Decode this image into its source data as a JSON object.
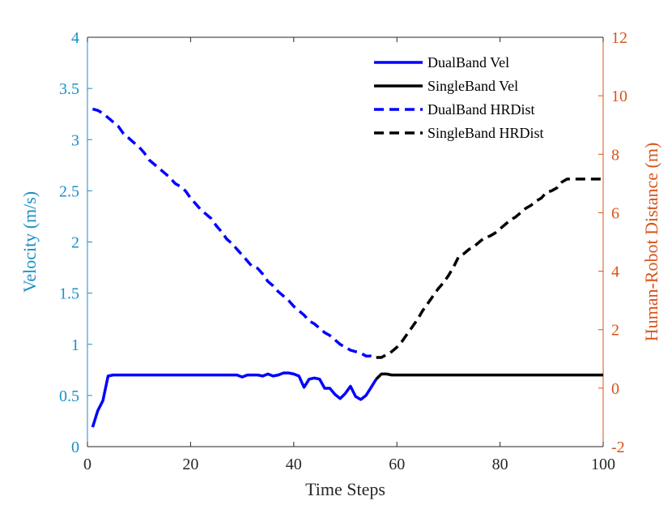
{
  "chart_data": {
    "type": "line",
    "xlabel": "Time Steps",
    "ylabel_left": "Velocity (m/s)",
    "ylabel_right": "Human-Robot Distance (m)",
    "xlim": [
      0,
      100
    ],
    "ylim_left": [
      0,
      4
    ],
    "ylim_right": [
      -2,
      12
    ],
    "xticks": [
      0,
      20,
      40,
      60,
      80,
      100
    ],
    "yticks_left": [
      0,
      0.5,
      1,
      1.5,
      2,
      2.5,
      3,
      3.5,
      4
    ],
    "yticks_left_labels": [
      "0",
      "0.5",
      "1",
      "1.5",
      "2",
      "2.5",
      "3",
      "3.5",
      "4"
    ],
    "yticks_right": [
      -2,
      0,
      2,
      4,
      6,
      8,
      10,
      12
    ],
    "grid": false,
    "legend_position": "top-right",
    "colors": {
      "left_axis": "#1a8fc7",
      "right_axis": "#d95319",
      "axis": "#262626"
    },
    "series": [
      {
        "name": "DualBand Vel",
        "axis": "left",
        "color": "#0000ff",
        "dash": "solid",
        "points": [
          [
            1,
            0.19
          ],
          [
            2,
            0.35
          ],
          [
            3,
            0.45
          ],
          [
            4,
            0.69
          ],
          [
            5,
            0.7
          ],
          [
            10,
            0.7
          ],
          [
            15,
            0.7
          ],
          [
            20,
            0.7
          ],
          [
            25,
            0.7
          ],
          [
            29,
            0.7
          ],
          [
            30,
            0.68
          ],
          [
            31,
            0.7
          ],
          [
            33,
            0.7
          ],
          [
            34,
            0.69
          ],
          [
            35,
            0.71
          ],
          [
            36,
            0.69
          ],
          [
            37,
            0.7
          ],
          [
            38,
            0.72
          ],
          [
            39,
            0.72
          ],
          [
            40,
            0.71
          ],
          [
            41,
            0.69
          ],
          [
            42,
            0.58
          ],
          [
            43,
            0.66
          ],
          [
            44,
            0.67
          ],
          [
            45,
            0.66
          ],
          [
            46,
            0.57
          ],
          [
            47,
            0.57
          ],
          [
            48,
            0.51
          ],
          [
            49,
            0.47
          ],
          [
            50,
            0.52
          ],
          [
            51,
            0.59
          ],
          [
            52,
            0.49
          ],
          [
            53,
            0.46
          ],
          [
            54,
            0.5
          ],
          [
            55,
            0.58
          ],
          [
            56,
            0.66
          ]
        ]
      },
      {
        "name": "SingleBand Vel",
        "axis": "left",
        "color": "#000000",
        "dash": "solid",
        "points": [
          [
            56,
            0.66
          ],
          [
            57,
            0.71
          ],
          [
            58,
            0.71
          ],
          [
            59,
            0.7
          ],
          [
            60,
            0.7
          ],
          [
            70,
            0.7
          ],
          [
            80,
            0.7
          ],
          [
            90,
            0.7
          ],
          [
            100,
            0.7
          ]
        ]
      },
      {
        "name": "DualBand HRDist",
        "axis": "right",
        "color": "#0000ff",
        "dash": "dashed",
        "points": [
          [
            1,
            9.55
          ],
          [
            2,
            9.5
          ],
          [
            3,
            9.4
          ],
          [
            4,
            9.25
          ],
          [
            5,
            9.1
          ],
          [
            6,
            8.95
          ],
          [
            7,
            8.7
          ],
          [
            8,
            8.55
          ],
          [
            9,
            8.4
          ],
          [
            10,
            8.25
          ],
          [
            11,
            8.05
          ],
          [
            12,
            7.8
          ],
          [
            13,
            7.65
          ],
          [
            14,
            7.5
          ],
          [
            15,
            7.35
          ],
          [
            16,
            7.2
          ],
          [
            17,
            7.0
          ],
          [
            18,
            6.9
          ],
          [
            19,
            6.75
          ],
          [
            20,
            6.5
          ],
          [
            21,
            6.3
          ],
          [
            22,
            6.1
          ],
          [
            23,
            5.95
          ],
          [
            24,
            5.8
          ],
          [
            25,
            5.55
          ],
          [
            26,
            5.35
          ],
          [
            27,
            5.1
          ],
          [
            28,
            4.95
          ],
          [
            29,
            4.75
          ],
          [
            30,
            4.55
          ],
          [
            31,
            4.35
          ],
          [
            32,
            4.15
          ],
          [
            33,
            4.1
          ],
          [
            34,
            3.9
          ],
          [
            35,
            3.65
          ],
          [
            36,
            3.5
          ],
          [
            37,
            3.3
          ],
          [
            38,
            3.15
          ],
          [
            39,
            3.0
          ],
          [
            40,
            2.8
          ],
          [
            41,
            2.65
          ],
          [
            42,
            2.5
          ],
          [
            43,
            2.3
          ],
          [
            44,
            2.2
          ],
          [
            45,
            2.05
          ],
          [
            46,
            1.9
          ],
          [
            47,
            1.8
          ],
          [
            48,
            1.65
          ],
          [
            49,
            1.5
          ],
          [
            50,
            1.4
          ],
          [
            51,
            1.3
          ],
          [
            52,
            1.25
          ],
          [
            53,
            1.2
          ],
          [
            54,
            1.1
          ],
          [
            55,
            1.1
          ],
          [
            56,
            1.05
          ]
        ]
      },
      {
        "name": "SingleBand HRDist",
        "axis": "right",
        "color": "#000000",
        "dash": "dashed",
        "points": [
          [
            56,
            1.05
          ],
          [
            57,
            1.05
          ],
          [
            58,
            1.15
          ],
          [
            59,
            1.25
          ],
          [
            60,
            1.4
          ],
          [
            61,
            1.6
          ],
          [
            62,
            1.85
          ],
          [
            63,
            2.1
          ],
          [
            64,
            2.35
          ],
          [
            65,
            2.65
          ],
          [
            66,
            2.9
          ],
          [
            67,
            3.15
          ],
          [
            68,
            3.4
          ],
          [
            69,
            3.6
          ],
          [
            70,
            3.85
          ],
          [
            71,
            4.15
          ],
          [
            72,
            4.5
          ],
          [
            73,
            4.6
          ],
          [
            74,
            4.75
          ],
          [
            75,
            4.85
          ],
          [
            76,
            5.0
          ],
          [
            77,
            5.15
          ],
          [
            78,
            5.2
          ],
          [
            79,
            5.3
          ],
          [
            80,
            5.45
          ],
          [
            81,
            5.6
          ],
          [
            82,
            5.75
          ],
          [
            83,
            5.85
          ],
          [
            84,
            6.0
          ],
          [
            85,
            6.15
          ],
          [
            86,
            6.25
          ],
          [
            87,
            6.4
          ],
          [
            88,
            6.5
          ],
          [
            89,
            6.7
          ],
          [
            90,
            6.75
          ],
          [
            91,
            6.85
          ],
          [
            92,
            7.05
          ],
          [
            93,
            7.15
          ],
          [
            95,
            7.15
          ],
          [
            97,
            7.15
          ],
          [
            99,
            7.15
          ],
          [
            100,
            7.15
          ]
        ]
      }
    ]
  }
}
